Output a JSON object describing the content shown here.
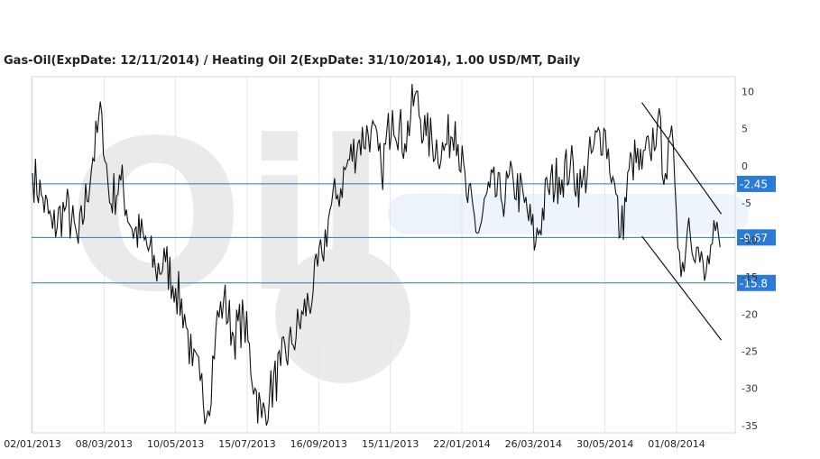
{
  "chart_data": {
    "type": "line",
    "title": "Gas-Oil(ExpDate: 12/11/2014) / Heating Oil 2(ExpDate: 31/10/2014), 1.00 USD/MT, Daily",
    "xlabel": "",
    "ylabel": "",
    "ylim": [
      -36,
      12
    ],
    "yticks": [
      10,
      5,
      0,
      -5,
      -10,
      -15,
      -20,
      -25,
      -30,
      -35
    ],
    "x_tick_labels": [
      "02/01/2013",
      "08/03/2013",
      "10/05/2013",
      "15/07/2013",
      "16/09/2013",
      "15/11/2013",
      "22/01/2014",
      "26/03/2014",
      "30/05/2014",
      "01/08/2014"
    ],
    "grid": true,
    "horizontal_levels": [
      {
        "label": "-2.45",
        "value": -2.45
      },
      {
        "label": "-9.67",
        "value": -9.67
      },
      {
        "label": "-15.8",
        "value": -15.8
      }
    ],
    "trend_lines": [
      {
        "points": [
          [
            "2014-07-01",
            8.5
          ],
          [
            "2014-09-10",
            -6.5
          ]
        ]
      },
      {
        "points": [
          [
            "2014-07-01",
            -9.5
          ],
          [
            "2014-09-10",
            -23.5
          ]
        ]
      }
    ],
    "series": [
      {
        "values": [
          [
            "2013-01-02",
            -1.0
          ],
          [
            "2013-01-10",
            -4.0
          ],
          [
            "2013-01-20",
            -8.5
          ],
          [
            "2013-02-01",
            -5.5
          ],
          [
            "2013-02-12",
            -10.5
          ],
          [
            "2013-02-25",
            1.0
          ],
          [
            "2013-03-05",
            7.0
          ],
          [
            "2013-03-12",
            -5.0
          ],
          [
            "2013-03-22",
            -2.0
          ],
          [
            "2013-04-01",
            -8.5
          ],
          [
            "2013-04-12",
            -10.0
          ],
          [
            "2013-04-22",
            -14.0
          ],
          [
            "2013-05-01",
            -13.0
          ],
          [
            "2013-05-10",
            -16.5
          ],
          [
            "2013-05-18",
            -20.0
          ],
          [
            "2013-05-25",
            -27.0
          ],
          [
            "2013-06-01",
            -29.0
          ],
          [
            "2013-06-08",
            -33.0
          ],
          [
            "2013-06-15",
            -22.0
          ],
          [
            "2013-06-22",
            -18.0
          ],
          [
            "2013-07-01",
            -23.0
          ],
          [
            "2013-07-10",
            -20.5
          ],
          [
            "2013-07-20",
            -30.0
          ],
          [
            "2013-07-26",
            -34.0
          ],
          [
            "2013-08-02",
            -31.0
          ],
          [
            "2013-08-12",
            -27.0
          ],
          [
            "2013-08-22",
            -24.0
          ],
          [
            "2013-09-01",
            -20.0
          ],
          [
            "2013-09-10",
            -17.0
          ],
          [
            "2013-09-18",
            -12.0
          ],
          [
            "2013-09-25",
            -6.0
          ],
          [
            "2013-10-02",
            -4.0
          ],
          [
            "2013-10-10",
            0.0
          ],
          [
            "2013-10-20",
            3.0
          ],
          [
            "2013-11-01",
            5.0
          ],
          [
            "2013-11-10",
            -1.0
          ],
          [
            "2013-11-20",
            7.5
          ],
          [
            "2013-12-01",
            3.0
          ],
          [
            "2013-12-10",
            9.5
          ],
          [
            "2013-12-20",
            4.0
          ],
          [
            "2014-01-05",
            2.0
          ],
          [
            "2014-01-15",
            6.0
          ],
          [
            "2014-01-25",
            -4.0
          ],
          [
            "2014-02-05",
            -9.0
          ],
          [
            "2014-02-15",
            -3.0
          ],
          [
            "2014-02-25",
            -4.5
          ],
          [
            "2014-03-08",
            -2.0
          ],
          [
            "2014-03-18",
            -5.0
          ],
          [
            "2014-03-28",
            -10.5
          ],
          [
            "2014-04-08",
            -3.0
          ],
          [
            "2014-04-18",
            -1.5
          ],
          [
            "2014-04-28",
            0.0
          ],
          [
            "2014-05-08",
            -3.0
          ],
          [
            "2014-05-18",
            2.0
          ],
          [
            "2014-05-28",
            5.0
          ],
          [
            "2014-06-05",
            -1.5
          ],
          [
            "2014-06-12",
            -9.5
          ],
          [
            "2014-06-22",
            1.0
          ],
          [
            "2014-07-01",
            -0.5
          ],
          [
            "2014-07-08",
            2.0
          ],
          [
            "2014-07-15",
            6.0
          ],
          [
            "2014-07-22",
            -1.0
          ],
          [
            "2014-07-29",
            3.0
          ],
          [
            "2014-08-05",
            -15.0
          ],
          [
            "2014-08-12",
            -7.0
          ],
          [
            "2014-08-19",
            -11.0
          ],
          [
            "2014-08-26",
            -15.5
          ],
          [
            "2014-09-02",
            -10.5
          ],
          [
            "2014-09-09",
            -11.0
          ]
        ]
      }
    ]
  }
}
